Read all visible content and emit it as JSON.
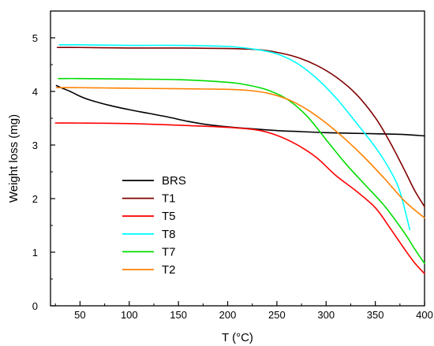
{
  "chart_data": {
    "type": "line",
    "title": "",
    "xlabel": "T (°C)",
    "ylabel": "Weight loss (mg)",
    "xlim": [
      20,
      400
    ],
    "ylim": [
      0,
      5.5
    ],
    "x_ticks": [
      50,
      100,
      150,
      200,
      250,
      300,
      350,
      400
    ],
    "y_ticks": [
      0,
      1,
      2,
      3,
      4,
      5
    ],
    "x_tick_labels": [
      "50",
      "100",
      "150",
      "200",
      "250",
      "300",
      "350",
      "400"
    ],
    "y_tick_labels": [
      "0",
      "1",
      "2",
      "3",
      "4",
      "5"
    ],
    "grid": false,
    "legend_position": "lower-left",
    "series": [
      {
        "name": "BRS",
        "color": "#000000",
        "x": [
          26,
          32,
          40,
          50,
          60,
          80,
          100,
          120,
          140,
          160,
          180,
          200,
          220,
          250,
          275,
          300,
          325,
          350,
          375,
          400
        ],
        "y": [
          4.11,
          4.06,
          4.0,
          3.91,
          3.84,
          3.74,
          3.66,
          3.59,
          3.52,
          3.44,
          3.38,
          3.34,
          3.31,
          3.27,
          3.25,
          3.23,
          3.22,
          3.21,
          3.2,
          3.17
        ]
      },
      {
        "name": "T1",
        "color": "#800000",
        "x": [
          27,
          50,
          100,
          150,
          200,
          230,
          250,
          270,
          290,
          310,
          330,
          350,
          365,
          380,
          390,
          400
        ],
        "y": [
          4.82,
          4.82,
          4.81,
          4.81,
          4.8,
          4.78,
          4.73,
          4.64,
          4.49,
          4.27,
          3.96,
          3.51,
          3.05,
          2.52,
          2.15,
          1.85
        ]
      },
      {
        "name": "T5",
        "color": "#ff0000",
        "x": [
          25,
          50,
          100,
          150,
          200,
          230,
          250,
          270,
          290,
          310,
          330,
          350,
          365,
          380,
          390,
          400
        ],
        "y": [
          3.41,
          3.41,
          3.4,
          3.37,
          3.33,
          3.28,
          3.18,
          3.01,
          2.77,
          2.43,
          2.15,
          1.83,
          1.45,
          1.05,
          0.8,
          0.6
        ]
      },
      {
        "name": "T8",
        "color": "#00ffff",
        "x": [
          29,
          50,
          100,
          150,
          200,
          230,
          250,
          270,
          290,
          310,
          330,
          350,
          365,
          375,
          385
        ],
        "y": [
          4.87,
          4.87,
          4.86,
          4.86,
          4.84,
          4.78,
          4.7,
          4.53,
          4.25,
          3.88,
          3.43,
          2.96,
          2.53,
          2.13,
          1.42
        ]
      },
      {
        "name": "T7",
        "color": "#00dd00",
        "x": [
          28,
          50,
          100,
          150,
          200,
          220,
          240,
          260,
          280,
          300,
          320,
          340,
          360,
          380,
          390,
          400
        ],
        "y": [
          4.24,
          4.24,
          4.23,
          4.22,
          4.17,
          4.12,
          4.03,
          3.86,
          3.55,
          3.1,
          2.65,
          2.25,
          1.85,
          1.35,
          1.06,
          0.79
        ]
      },
      {
        "name": "T2",
        "color": "#ff8000",
        "x": [
          26,
          50,
          100,
          150,
          200,
          220,
          240,
          260,
          280,
          300,
          320,
          340,
          360,
          380,
          400
        ],
        "y": [
          4.07,
          4.07,
          4.06,
          4.05,
          4.04,
          4.02,
          3.97,
          3.86,
          3.67,
          3.41,
          3.1,
          2.75,
          2.36,
          1.95,
          1.64
        ]
      }
    ]
  }
}
